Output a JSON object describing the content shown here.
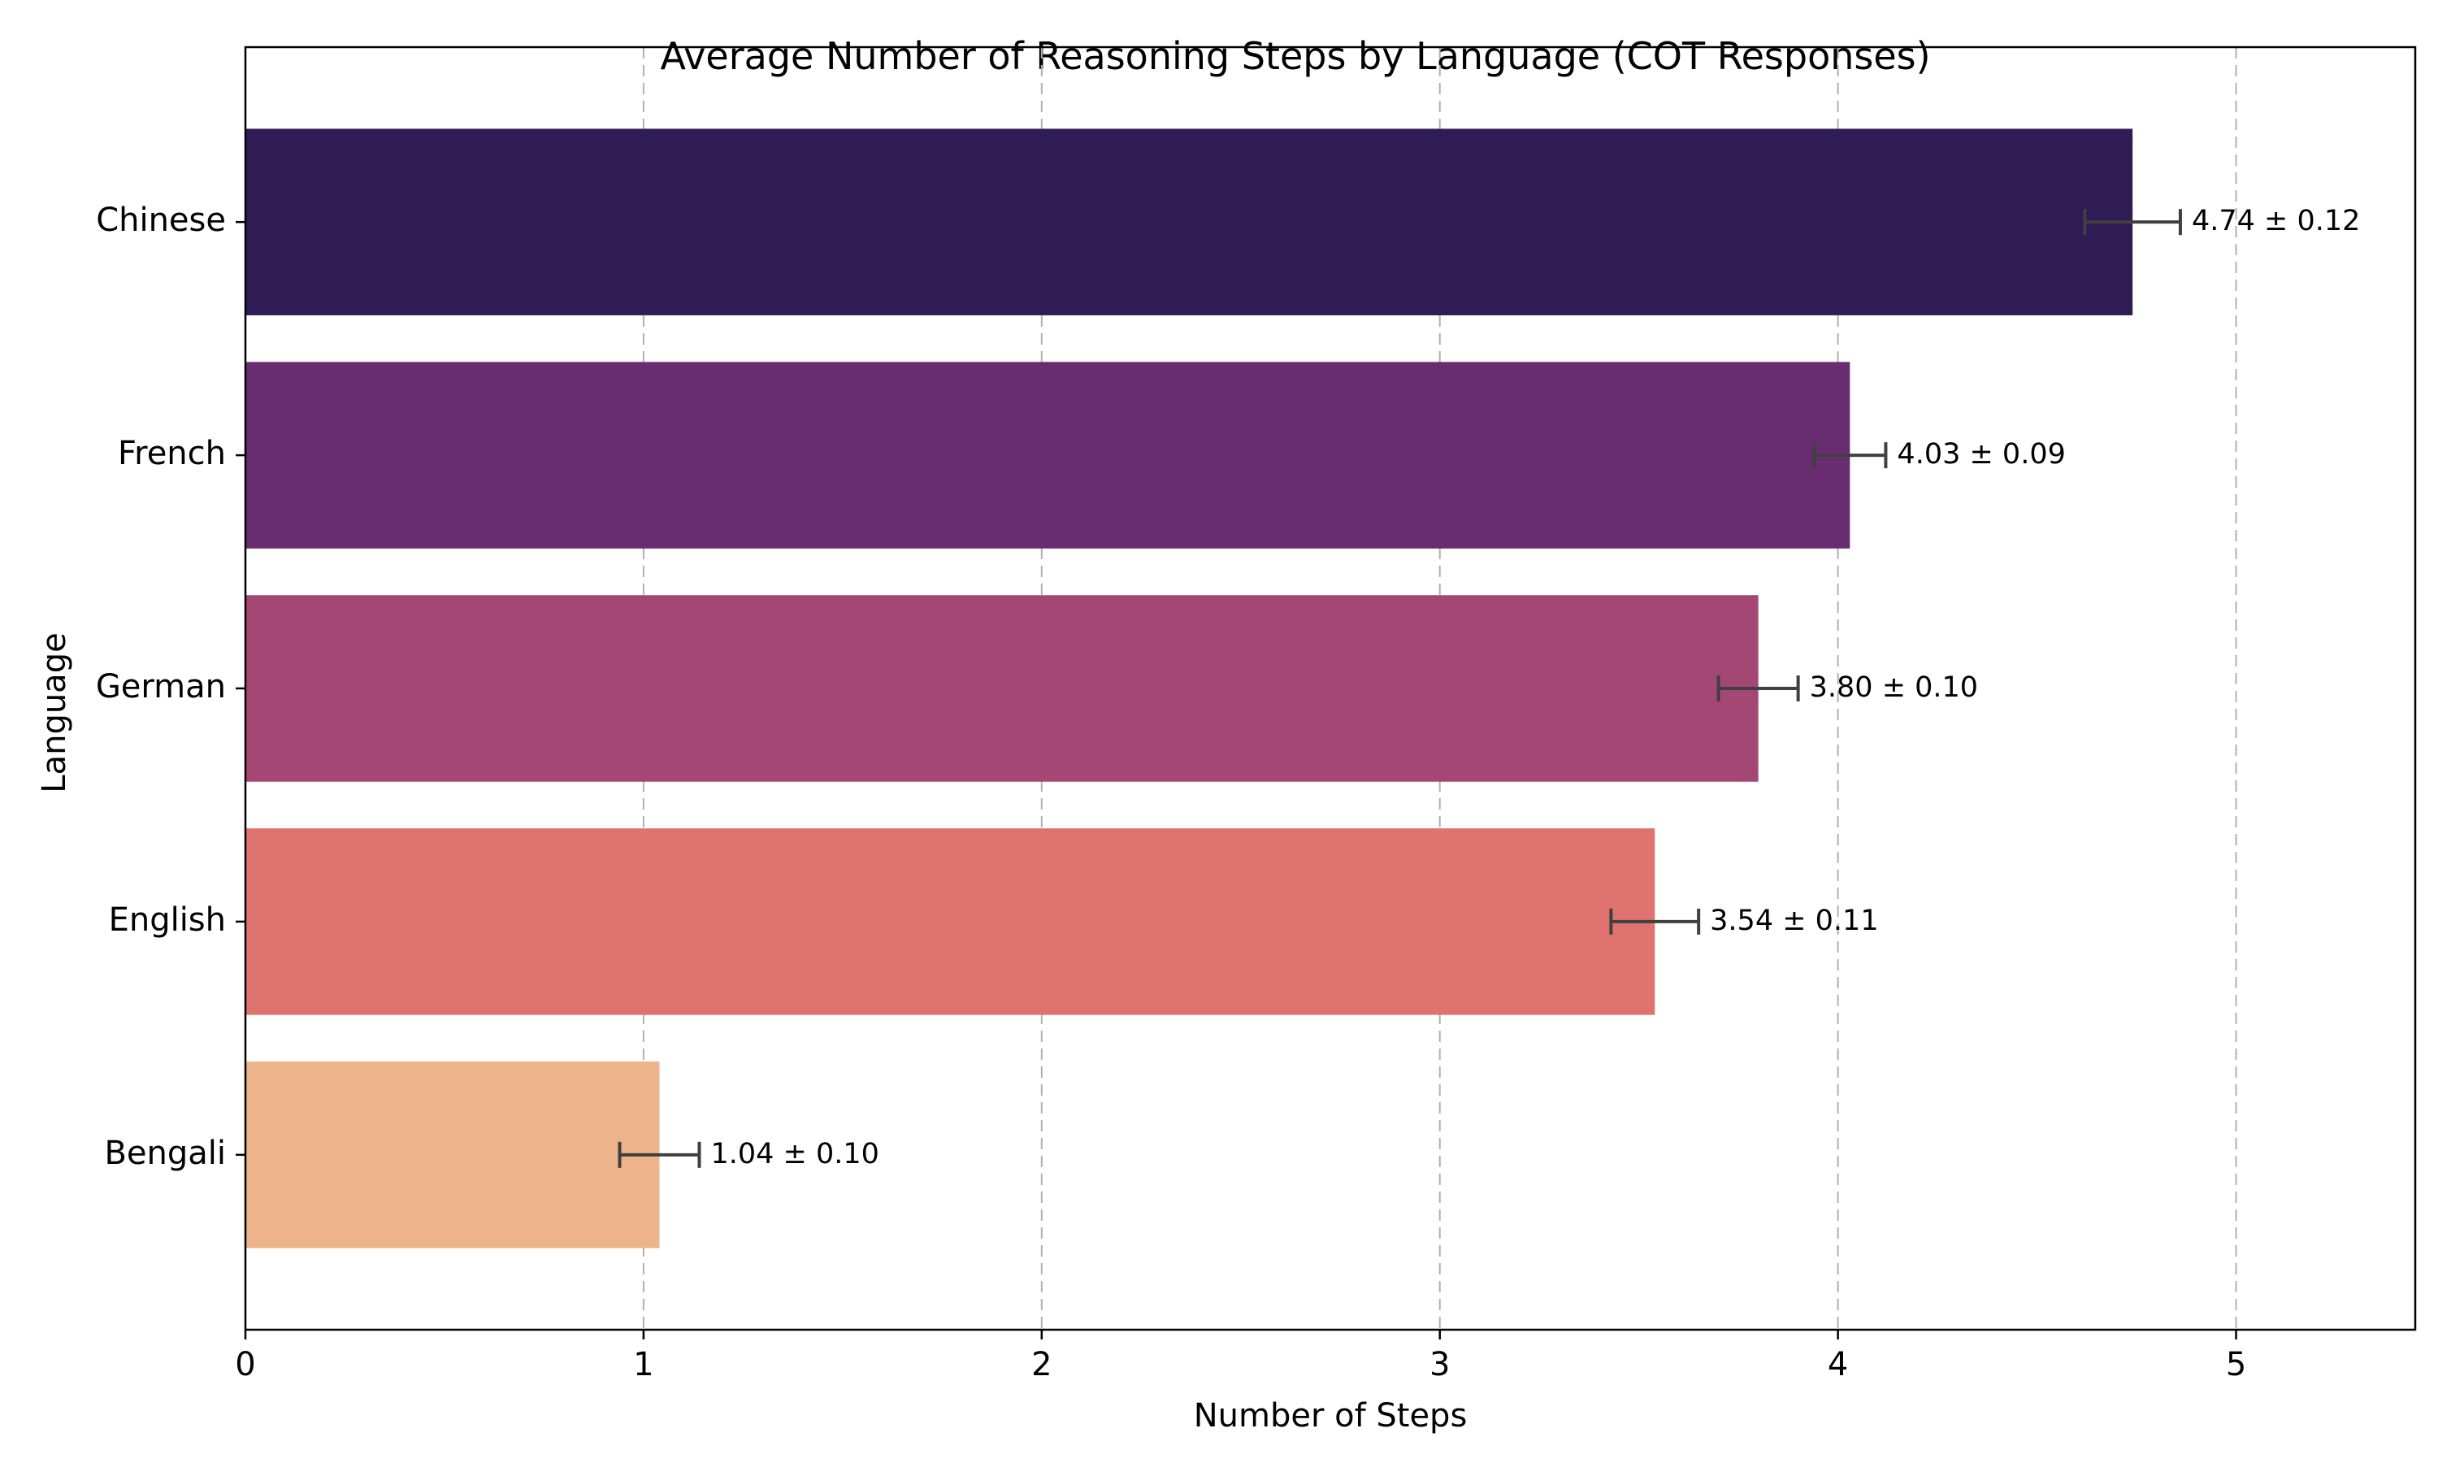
{
  "chart_data": {
    "type": "bar",
    "orientation": "horizontal",
    "title": "Average Number of Reasoning Steps by Language (COT Responses)",
    "xlabel": "Number of Steps",
    "ylabel": "Language",
    "xlim": [
      0,
      5.45
    ],
    "xticks": [
      0,
      1,
      2,
      3,
      4,
      5
    ],
    "grid": "x-dashed",
    "categories": [
      "Chinese",
      "French",
      "German",
      "English",
      "Bengali"
    ],
    "values": [
      4.74,
      4.03,
      3.8,
      3.54,
      1.04
    ],
    "errors": [
      0.12,
      0.09,
      0.1,
      0.11,
      0.1
    ],
    "labels": [
      "4.74 ± 0.12",
      "4.03 ± 0.09",
      "3.80 ± 0.10",
      "3.54 ± 0.11",
      "1.04 ± 0.10"
    ],
    "colors": [
      "#2f1c54",
      "#6a2c71",
      "#a44775",
      "#df7370",
      "#edb38a"
    ]
  }
}
